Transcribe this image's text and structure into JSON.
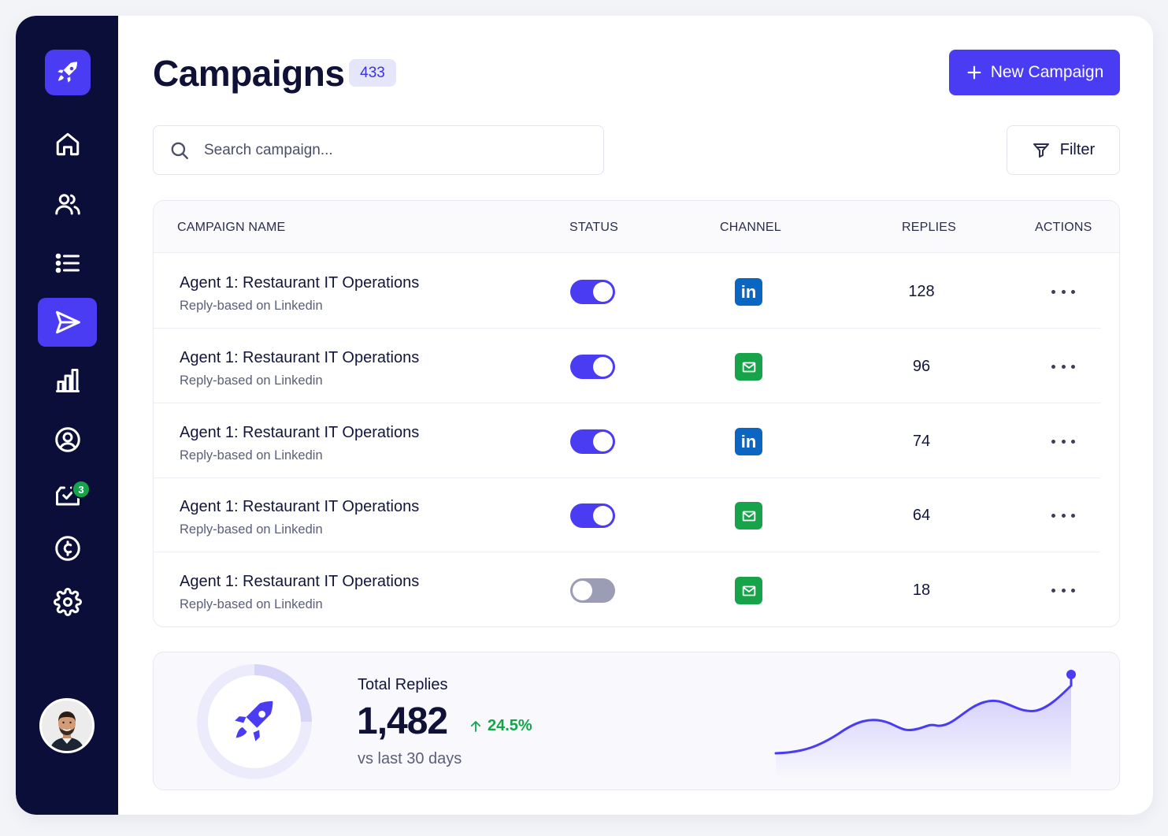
{
  "sidebar": {
    "items": [
      {
        "name": "home",
        "icon": "home-icon"
      },
      {
        "name": "contacts",
        "icon": "users-icon"
      },
      {
        "name": "lists",
        "icon": "list-icon"
      },
      {
        "name": "campaigns",
        "icon": "send-icon",
        "active": true
      },
      {
        "name": "analytics",
        "icon": "bar-chart-icon"
      },
      {
        "name": "profile",
        "icon": "user-circle-icon"
      },
      {
        "name": "inbox",
        "icon": "inbox-check-icon",
        "badge": "3"
      },
      {
        "name": "billing",
        "icon": "credit-icon"
      },
      {
        "name": "settings",
        "icon": "gear-icon"
      }
    ]
  },
  "header": {
    "title": "Campaigns",
    "count": "433",
    "new_button_label": "New Campaign"
  },
  "search": {
    "placeholder": "Search campaign..."
  },
  "filter": {
    "label": "Filter"
  },
  "table": {
    "columns": {
      "name": "CAMPAIGN NAME",
      "status": "STATUS",
      "channel": "CHANNEL",
      "replies": "REPLIES",
      "actions": "ACTIONS"
    },
    "rows": [
      {
        "name": "Agent 1: Restaurant IT Operations",
        "subtitle": "Reply-based on Linkedin",
        "status_on": true,
        "channel": "linkedin",
        "replies": "128"
      },
      {
        "name": "Agent 1: Restaurant IT Operations",
        "subtitle": "Reply-based on Linkedin",
        "status_on": true,
        "channel": "email",
        "replies": "96"
      },
      {
        "name": "Agent 1: Restaurant IT Operations",
        "subtitle": "Reply-based on Linkedin",
        "status_on": true,
        "channel": "linkedin",
        "replies": "74"
      },
      {
        "name": "Agent 1: Restaurant IT Operations",
        "subtitle": "Reply-based on Linkedin",
        "status_on": true,
        "channel": "email",
        "replies": "64"
      },
      {
        "name": "Agent 1: Restaurant IT Operations",
        "subtitle": "Reply-based on Linkedin",
        "status_on": false,
        "channel": "email",
        "replies": "18"
      }
    ]
  },
  "stats": {
    "label": "Total Replies",
    "value": "1,482",
    "change": "24.5%",
    "period": "vs last 30 days"
  },
  "colors": {
    "accent": "#4a3cf2",
    "sidebar_bg": "#0c0e3a",
    "positive": "#16a34a",
    "linkedin": "#0a66c2",
    "toggle_off": "#9a9db4"
  }
}
